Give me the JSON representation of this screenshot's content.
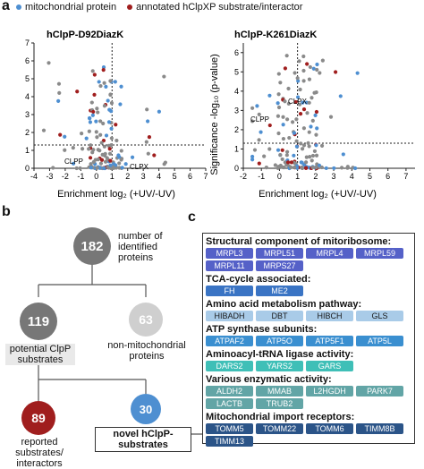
{
  "panel_a": {
    "letter": "a",
    "legend": {
      "mito": {
        "label": "mitochondrial protein",
        "color": "#4e8fd1"
      },
      "annot": {
        "label": "annotated hClpXP substrate/interactor",
        "color": "#a01e1e"
      }
    },
    "left_plot": {
      "title": "hClpP-D92DiazK",
      "xlabel": "Enrichment log₂ (+UV/-UV)",
      "xticks": [
        "-4",
        "-3",
        "-2",
        "-1",
        "0",
        "1",
        "2",
        "3",
        "4",
        "5",
        "6",
        "7"
      ],
      "yticks": [
        "0",
        "1",
        "2",
        "3",
        "4",
        "5",
        "6",
        "7"
      ],
      "callouts": {
        "clpp": "CLPP",
        "clpx": "CLPX"
      }
    },
    "right_plot": {
      "title": "hClpP-K261DiazK",
      "xlabel": "Enrichment log₂ (+UV/-UV)",
      "ylabel": "Significance -log₁₀ (p-value)",
      "xticks": [
        "-2",
        "-1",
        "0",
        "1",
        "2",
        "3",
        "4",
        "5",
        "6",
        "7"
      ],
      "yticks": [
        "0",
        "1",
        "2",
        "3",
        "4",
        "5",
        "6"
      ],
      "callouts": {
        "clpp": "CLPP",
        "clpx": "CLPX"
      }
    },
    "shared_ylabel": "Significance -log₁₀ (p-value)"
  },
  "panel_b": {
    "letter": "b",
    "nodes": {
      "n182": {
        "value": "182",
        "label": "number of identified proteins",
        "color": "#777777"
      },
      "n119": {
        "value": "119",
        "label": "potential ClpP substrates",
        "color": "#777777"
      },
      "n63": {
        "value": "63",
        "label": "non-mitochondrial proteins",
        "color": "#cfcfcf"
      },
      "n89": {
        "value": "89",
        "label": "reported substrates/ interactors",
        "color": "#a01e1e"
      },
      "n30": {
        "value": "30",
        "label": "novel hClpP-substrates",
        "color": "#4e8fd1"
      }
    }
  },
  "panel_c": {
    "letter": "c",
    "categories": [
      {
        "title": "Structural component of mitoribosome:",
        "bg": "#5561c8",
        "fg": "#ffffff",
        "items": [
          "MRPL3",
          "MRPL51",
          "MRPL4",
          "MRPL59",
          "MRPL11",
          "MRPS27"
        ]
      },
      {
        "title": "TCA-cycle associated:",
        "bg": "#3a74c4",
        "fg": "#ffffff",
        "items": [
          "FH",
          "ME2"
        ]
      },
      {
        "title": "Amino acid metabolism pathway:",
        "bg": "#a9cbe8",
        "fg": "#1a1a1a",
        "items": [
          "HIBADH",
          "DBT",
          "HIBCH",
          "GLS"
        ]
      },
      {
        "title": "ATP synthase subunits:",
        "bg": "#3a8fd0",
        "fg": "#ffffff",
        "items": [
          "ATPAF2",
          "ATP5O",
          "ATP5F1",
          "ATP5L"
        ]
      },
      {
        "title": "Aminoacyl-tRNA ligase activity:",
        "bg": "#3fbfb7",
        "fg": "#ffffff",
        "items": [
          "DARS2",
          "YARS2",
          "GARS"
        ]
      },
      {
        "title": "Various enzymatic activity:",
        "bg": "#62a5a6",
        "fg": "#ffffff",
        "items": [
          "ALDH2",
          "MMAB",
          "L2HGDH",
          "PARK7",
          "LACTB",
          "TRUB2"
        ]
      },
      {
        "title": "Mitochondrial import receptors:",
        "bg": "#2b5488",
        "fg": "#ffffff",
        "items": [
          "TOMM5",
          "TOMM22",
          "TOMM6",
          "TIMM8B",
          "TIMM13"
        ]
      }
    ]
  }
}
